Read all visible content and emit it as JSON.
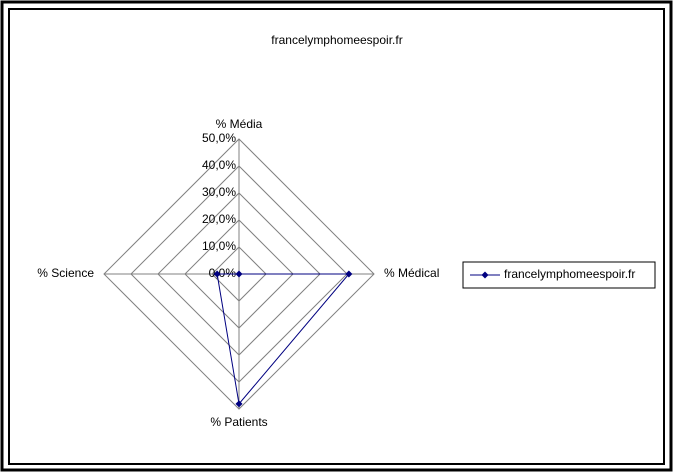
{
  "chart_data": {
    "type": "radar",
    "title": "francelymphomeespoir.fr",
    "categories": [
      "% Média",
      "% Médical",
      "% Patients",
      "% Science"
    ],
    "series": [
      {
        "name": "francelymphomeespoir.fr",
        "color": "#000080",
        "values": [
          0,
          40.7,
          48.1,
          8.1
        ]
      }
    ],
    "ylim": [
      0,
      50
    ],
    "yticks": [
      {
        "value": 0,
        "label": "0,0%"
      },
      {
        "value": 10,
        "label": "10,0%"
      },
      {
        "value": 20,
        "label": "20,0%"
      },
      {
        "value": 30,
        "label": "30,0%"
      },
      {
        "value": 40,
        "label": "40,0%"
      },
      {
        "value": 50,
        "label": "50,0%"
      }
    ],
    "grid": true,
    "legend": "right"
  }
}
